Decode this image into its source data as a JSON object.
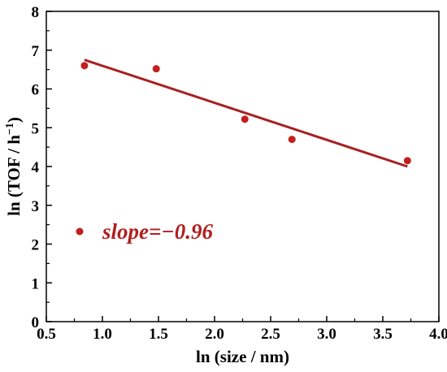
{
  "chart_data": {
    "type": "scatter",
    "title": "",
    "xlabel": "ln (size / nm)",
    "ylabel_main": "ln (TOF / h",
    "ylabel_sup": "−1",
    "ylabel_close": ")",
    "xlim": [
      0.5,
      4.0
    ],
    "ylim": [
      0,
      8
    ],
    "xticks": [
      0.5,
      1.0,
      1.5,
      2.0,
      2.5,
      3.0,
      3.5,
      4.0
    ],
    "xtick_labels": [
      "0.5",
      "1.0",
      "1.5",
      "2.0",
      "2.5",
      "3.0",
      "3.5",
      "4.0"
    ],
    "yticks": [
      0,
      1,
      2,
      3,
      4,
      5,
      6,
      7,
      8
    ],
    "ytick_labels": [
      "0",
      "1",
      "2",
      "3",
      "4",
      "5",
      "6",
      "7",
      "8"
    ],
    "grid": false,
    "series": [
      {
        "x": [
          0.84,
          1.48,
          2.27,
          2.69,
          3.72
        ],
        "y": [
          6.6,
          6.52,
          5.22,
          4.7,
          4.15
        ],
        "color": "#c41e1e"
      }
    ],
    "fit_line": {
      "x": [
        0.84,
        3.72
      ],
      "y": [
        6.75,
        4.0
      ],
      "color": "#a82020"
    },
    "legend": {
      "placement": "lower-left",
      "label": "slope=−0.96",
      "marker_color": "#c41e1e",
      "text_color": "#b02020"
    }
  }
}
